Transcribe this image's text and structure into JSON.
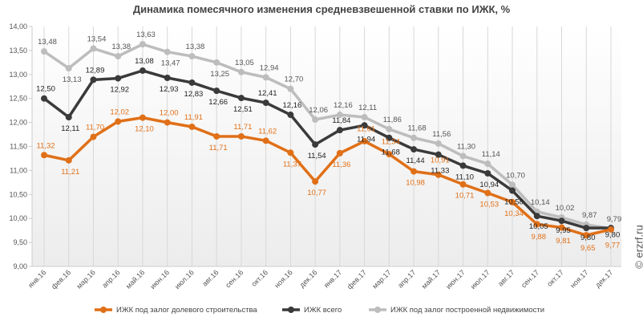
{
  "chart_data": {
    "type": "line",
    "title": "Динамика помесячного изменения средневзвешенной ставки по ИЖК, %",
    "categories": [
      "янв.16",
      "фев.16",
      "мар.16",
      "апр.16",
      "май.16",
      "июн.16",
      "июл.16",
      "авг.16",
      "сен.16",
      "окт.16",
      "ноя.16",
      "дек.16",
      "янв.17",
      "фев.17",
      "мар.17",
      "апр.17",
      "май.17",
      "июн.17",
      "июл.17",
      "авг.17",
      "сен.17",
      "окт.17",
      "ноя.17",
      "дек.17"
    ],
    "ylim": [
      9,
      14
    ],
    "yticks": [
      "9,00",
      "9,50",
      "10,00",
      "10,50",
      "11,00",
      "11,50",
      "12,00",
      "12,50",
      "13,00",
      "13,50",
      "14,00"
    ],
    "grid": "vertical",
    "legend": "bottom",
    "series": [
      {
        "name": "ИЖК под залог долевого строительства",
        "color": "#e07018",
        "values": [
          11.32,
          11.21,
          11.7,
          12.02,
          12.1,
          12.0,
          11.91,
          11.71,
          11.71,
          11.62,
          11.37,
          10.77,
          11.36,
          11.61,
          11.34,
          10.98,
          10.91,
          10.71,
          10.53,
          10.34,
          9.88,
          9.81,
          9.65,
          9.77
        ]
      },
      {
        "name": "ИЖК всего",
        "color": "#3a3a3a",
        "values": [
          12.5,
          12.11,
          12.89,
          12.92,
          13.08,
          12.93,
          12.83,
          12.66,
          12.51,
          12.41,
          12.16,
          11.54,
          11.84,
          11.94,
          11.68,
          11.44,
          11.33,
          11.1,
          10.94,
          10.58,
          10.05,
          9.95,
          9.8,
          9.8
        ]
      },
      {
        "name": "ИЖК под залог построенной недвижимости",
        "color": "#bdbdbd",
        "values": [
          13.48,
          13.13,
          13.54,
          13.38,
          13.63,
          13.47,
          13.38,
          13.25,
          13.05,
          12.94,
          12.7,
          12.06,
          12.16,
          12.11,
          11.86,
          11.68,
          11.56,
          11.3,
          11.14,
          10.7,
          10.14,
          10.02,
          9.87,
          9.79
        ]
      }
    ]
  },
  "watermark": "© erzrf.ru"
}
